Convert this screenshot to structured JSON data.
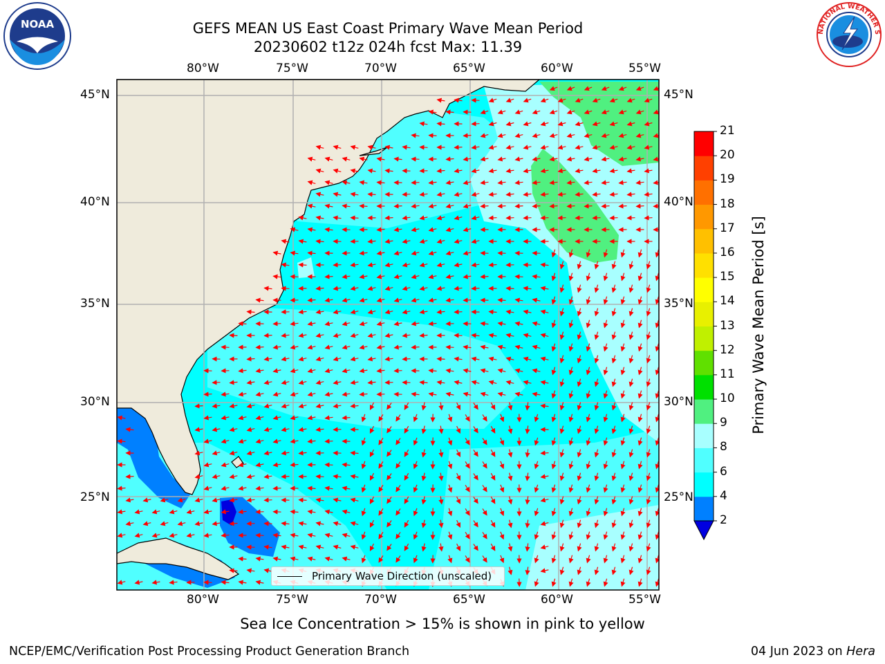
{
  "title": {
    "line1": "GEFS MEAN US East Coast Primary Wave Mean Period",
    "line2": "20230602 t12z 024h fcst   Max: 11.39"
  },
  "map": {
    "lon_labels": [
      "80°W",
      "75°W",
      "70°W",
      "65°W",
      "60°W",
      "55°W"
    ],
    "lat_labels": [
      "45°N",
      "40°N",
      "35°N",
      "30°N",
      "25°N"
    ],
    "lon_range": [
      -85,
      -54.5
    ],
    "lat_range": [
      20.5,
      46
    ],
    "vector_legend": "Primary Wave Direction (unscaled)",
    "land_color": "#efebdc",
    "grid_color": "#b0b0b0",
    "arrow_color": "#ff0000"
  },
  "colorbar": {
    "title": "Primary Wave Mean Period [s]",
    "tick_labels": [
      "2",
      "4",
      "6",
      "8",
      "9",
      "10",
      "11",
      "12",
      "13",
      "14",
      "15",
      "16",
      "17",
      "18",
      "19",
      "20",
      "21"
    ],
    "colors": [
      "#0000e0",
      "#0080ff",
      "#00ffff",
      "#50ffff",
      "#a8ffff",
      "#50f080",
      "#00e000",
      "#60e000",
      "#c0f000",
      "#e8f000",
      "#ffff00",
      "#ffe000",
      "#ffc000",
      "#ff9800",
      "#ff7000",
      "#ff4000",
      "#ff0000"
    ]
  },
  "caption": "Sea Ice Concentration > 15% is shown in pink to yellow",
  "footer": {
    "left": "NCEP/EMC/Verification Post Processing Product Generation Branch",
    "date": "04 Jun 2023 on",
    "host": "Hera"
  },
  "logos": {
    "noaa_text": "NOAA",
    "nws_ring_text": "NATIONAL WEATHER SERVICE"
  }
}
